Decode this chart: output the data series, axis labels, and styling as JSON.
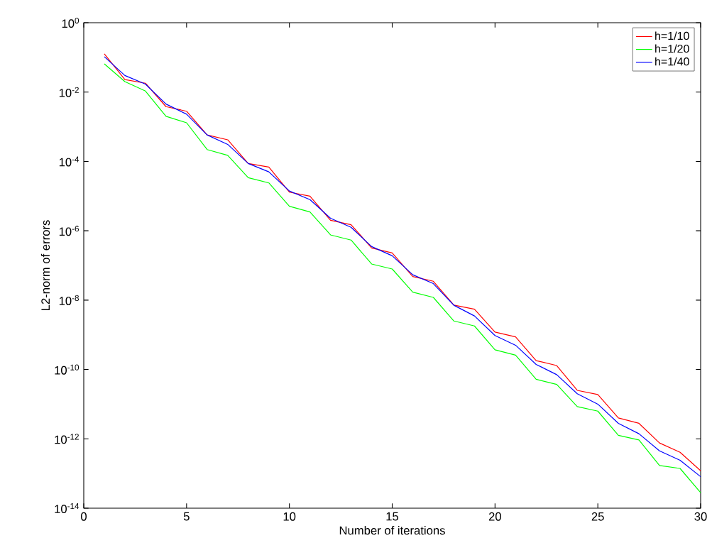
{
  "chart_data": {
    "type": "line",
    "xlabel": "Number of iterations",
    "ylabel": "L2-norm of errors",
    "log": "y",
    "legend": "top right",
    "marker": "none",
    "line_style": "solid",
    "grid": false,
    "x": [
      1,
      2,
      3,
      4,
      5,
      6,
      7,
      8,
      9,
      10,
      11,
      12,
      13,
      14,
      15,
      16,
      17,
      18,
      19,
      20,
      21,
      22,
      23,
      24,
      25,
      26,
      27,
      28,
      29,
      30
    ],
    "xlim": [
      0,
      30
    ],
    "xticks": [
      0,
      5,
      10,
      15,
      20,
      25,
      30
    ],
    "ylim": [
      1e-14,
      1
    ],
    "yticks": [
      {
        "value": 1,
        "label": "10$^{0}$"
      },
      {
        "value": 0.01,
        "label": "10$^{-2}$"
      },
      {
        "value": 0.0001,
        "label": "10$^{-4}$"
      },
      {
        "value": 1e-06,
        "label": "10$^{-6}$"
      },
      {
        "value": 1e-08,
        "label": "10$^{-8}$"
      },
      {
        "value": 1e-10,
        "label": "10$^{-10}$"
      },
      {
        "value": 1e-12,
        "label": "10$^{-12}$"
      },
      {
        "value": 1e-14,
        "label": "10$^{-14}$"
      }
    ],
    "series": [
      {
        "name": "h=1/10",
        "color": "#ff0000",
        "values": [
          0.126,
          0.023,
          0.018,
          0.0038,
          0.0028,
          0.00058,
          0.00042,
          8.7e-05,
          6.9e-05,
          1.3e-05,
          1e-05,
          2e-06,
          1.5e-06,
          3.2e-07,
          2.3e-07,
          4.8e-08,
          3.5e-08,
          7.2e-09,
          5.5e-09,
          1.2e-09,
          8.7e-10,
          1.8e-10,
          1.3e-10,
          2.5e-11,
          1.9e-11,
          4e-12,
          2.8e-12,
          7.6e-13,
          4.1e-13,
          1.2e-13
        ]
      },
      {
        "name": "h=1/20",
        "color": "#00ff00",
        "values": [
          0.065,
          0.02,
          0.0107,
          0.002,
          0.0013,
          0.00022,
          0.00015,
          3.4e-05,
          2.4e-05,
          5.1e-06,
          3.5e-06,
          7.6e-07,
          5.4e-07,
          1.1e-07,
          7.9e-08,
          1.7e-08,
          1.2e-08,
          2.5e-09,
          1.8e-09,
          3.7e-10,
          2.6e-10,
          5.2e-11,
          3.7e-11,
          8.5e-12,
          6.3e-12,
          1.26e-12,
          9.3e-13,
          1.7e-13,
          1.4e-13,
          2.8e-14
        ]
      },
      {
        "name": "h=1/40",
        "color": "#0000ff",
        "values": [
          0.105,
          0.03,
          0.017,
          0.0045,
          0.0023,
          0.00058,
          0.00031,
          8.7e-05,
          5e-05,
          1.4e-05,
          7.9e-06,
          2.3e-06,
          1.26e-06,
          3.5e-07,
          1.9e-07,
          5.4e-08,
          3e-08,
          7.1e-09,
          3.5e-09,
          9.5e-10,
          5e-10,
          1.4e-10,
          7.1e-11,
          2e-11,
          1e-11,
          2.8e-12,
          1.4e-12,
          4.5e-13,
          2.4e-13,
          8.1e-14
        ]
      }
    ]
  }
}
